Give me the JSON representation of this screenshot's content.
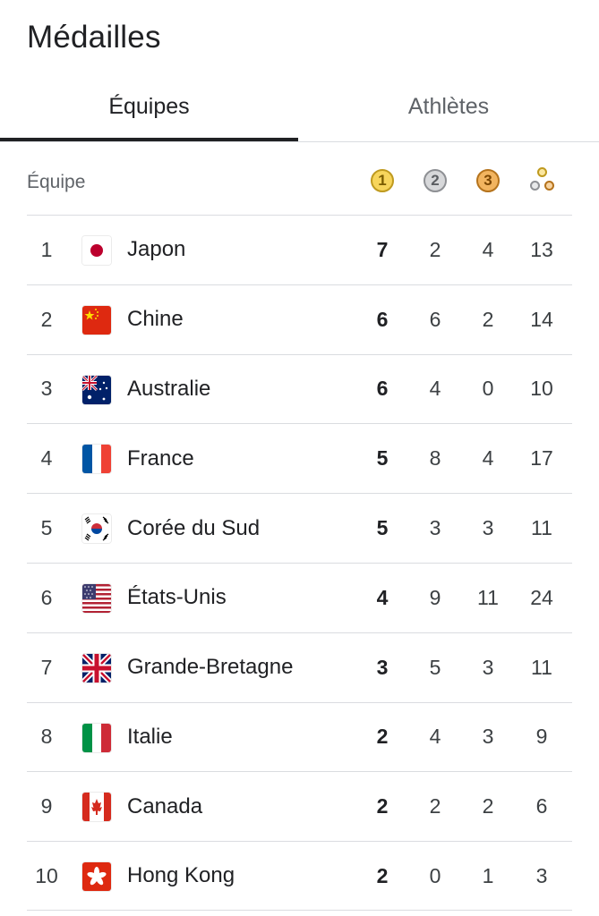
{
  "page": {
    "title": "Médailles"
  },
  "tabs": [
    {
      "label": "Équipes",
      "active": true
    },
    {
      "label": "Athlètes",
      "active": false
    }
  ],
  "table": {
    "team_header": "Équipe",
    "medal_icons": {
      "gold": "1",
      "silver": "2",
      "bronze": "3",
      "total": "medals-total-icon"
    },
    "colors": {
      "gold": "#f7d55c",
      "silver": "#d7d8da",
      "bronze": "#f2b45f",
      "divider": "#dadce0"
    },
    "rows": [
      {
        "rank": "1",
        "team": "Japon",
        "flag": "japan-flag-icon",
        "gold": "7",
        "silver": "2",
        "bronze": "4",
        "total": "13"
      },
      {
        "rank": "2",
        "team": "Chine",
        "flag": "china-flag-icon",
        "gold": "6",
        "silver": "6",
        "bronze": "2",
        "total": "14"
      },
      {
        "rank": "3",
        "team": "Australie",
        "flag": "australia-flag-icon",
        "gold": "6",
        "silver": "4",
        "bronze": "0",
        "total": "10"
      },
      {
        "rank": "4",
        "team": "France",
        "flag": "france-flag-icon",
        "gold": "5",
        "silver": "8",
        "bronze": "4",
        "total": "17"
      },
      {
        "rank": "5",
        "team": "Corée du Sud",
        "flag": "south-korea-flag-icon",
        "gold": "5",
        "silver": "3",
        "bronze": "3",
        "total": "11"
      },
      {
        "rank": "6",
        "team": "États-Unis",
        "flag": "usa-flag-icon",
        "gold": "4",
        "silver": "9",
        "bronze": "11",
        "total": "24"
      },
      {
        "rank": "7",
        "team": "Grande-Bretagne",
        "flag": "uk-flag-icon",
        "gold": "3",
        "silver": "5",
        "bronze": "3",
        "total": "11"
      },
      {
        "rank": "8",
        "team": "Italie",
        "flag": "italy-flag-icon",
        "gold": "2",
        "silver": "4",
        "bronze": "3",
        "total": "9"
      },
      {
        "rank": "9",
        "team": "Canada",
        "flag": "canada-flag-icon",
        "gold": "2",
        "silver": "2",
        "bronze": "2",
        "total": "6"
      },
      {
        "rank": "10",
        "team": "Hong Kong",
        "flag": "hong-kong-flag-icon",
        "gold": "2",
        "silver": "0",
        "bronze": "1",
        "total": "3"
      }
    ]
  }
}
